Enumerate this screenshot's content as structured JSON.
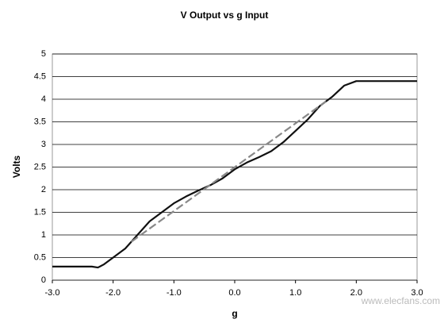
{
  "chart_data": {
    "type": "line",
    "title": "V Output vs g Input",
    "x_label": "g",
    "y_label": "Volts",
    "xlim": [
      -3.0,
      3.0
    ],
    "xticks": [
      {
        "value": -3,
        "label": "-3.0"
      },
      {
        "value": -2,
        "label": "-2.0"
      },
      {
        "value": -1,
        "label": "-1.0"
      },
      {
        "value": 0,
        "label": "0.0"
      },
      {
        "value": 1,
        "label": "1.0"
      },
      {
        "value": 2,
        "label": "2.0"
      },
      {
        "value": 3,
        "label": "3.0"
      }
    ],
    "ylim": [
      0,
      5
    ],
    "yticks": [
      0,
      0.5,
      1,
      1.5,
      2,
      2.5,
      3,
      3.5,
      4,
      4.5,
      5
    ],
    "grid": true,
    "series": [
      {
        "color": "#111111",
        "dash": false,
        "x": [
          -3.0,
          -2.5,
          -2.35,
          -2.25,
          -2.15,
          -2.0,
          -1.8,
          -1.6,
          -1.4,
          -1.2,
          -1.0,
          -0.8,
          -0.6,
          -0.4,
          -0.2,
          0.0,
          0.2,
          0.4,
          0.6,
          0.8,
          1.0,
          1.2,
          1.4,
          1.6,
          1.8,
          2.0,
          2.5,
          3.0
        ],
        "values": [
          0.3,
          0.3,
          0.3,
          0.28,
          0.35,
          0.5,
          0.7,
          1.0,
          1.3,
          1.5,
          1.7,
          1.85,
          1.98,
          2.1,
          2.25,
          2.45,
          2.6,
          2.72,
          2.85,
          3.05,
          3.3,
          3.55,
          3.85,
          4.05,
          4.3,
          4.4,
          4.4,
          4.4
        ]
      },
      {
        "color": "#888888",
        "dash": true,
        "x": [
          -1.7,
          1.5
        ],
        "values": [
          0.85,
          3.95
        ]
      }
    ],
    "watermark": "www.elecfans.com"
  }
}
